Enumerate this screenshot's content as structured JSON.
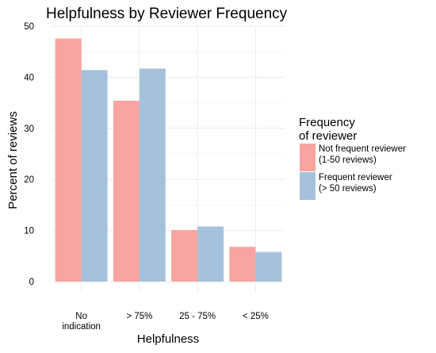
{
  "chart_data": {
    "type": "bar",
    "title": "Helpfulness by Reviewer Frequency",
    "xlabel": "Helpfulness",
    "ylabel": "Percent of reviews",
    "categories": [
      [
        "No",
        "indication"
      ],
      [
        "> 75%"
      ],
      [
        "25 - 75%"
      ],
      [
        "< 25%"
      ]
    ],
    "series": [
      {
        "name": "Not frequent reviewer (1-50 reviews)",
        "label_lines": [
          "Not frequent reviewer",
          "(1-50 reviews)"
        ],
        "color": "#f8a4a0",
        "values": [
          47.6,
          35.4,
          10.1,
          6.8
        ]
      },
      {
        "name": "Frequent reviewer (> 50 reviews)",
        "label_lines": [
          "Frequent reviewer",
          "(> 50 reviews)"
        ],
        "color": "#a6c1dc",
        "values": [
          41.4,
          41.7,
          10.8,
          5.8
        ]
      }
    ],
    "ylim": [
      0,
      50
    ],
    "yticks": [
      0,
      10,
      20,
      30,
      40,
      50
    ],
    "grid": true,
    "legend": {
      "title_lines": [
        "Frequency",
        "of reviewer"
      ],
      "position": "right"
    }
  }
}
